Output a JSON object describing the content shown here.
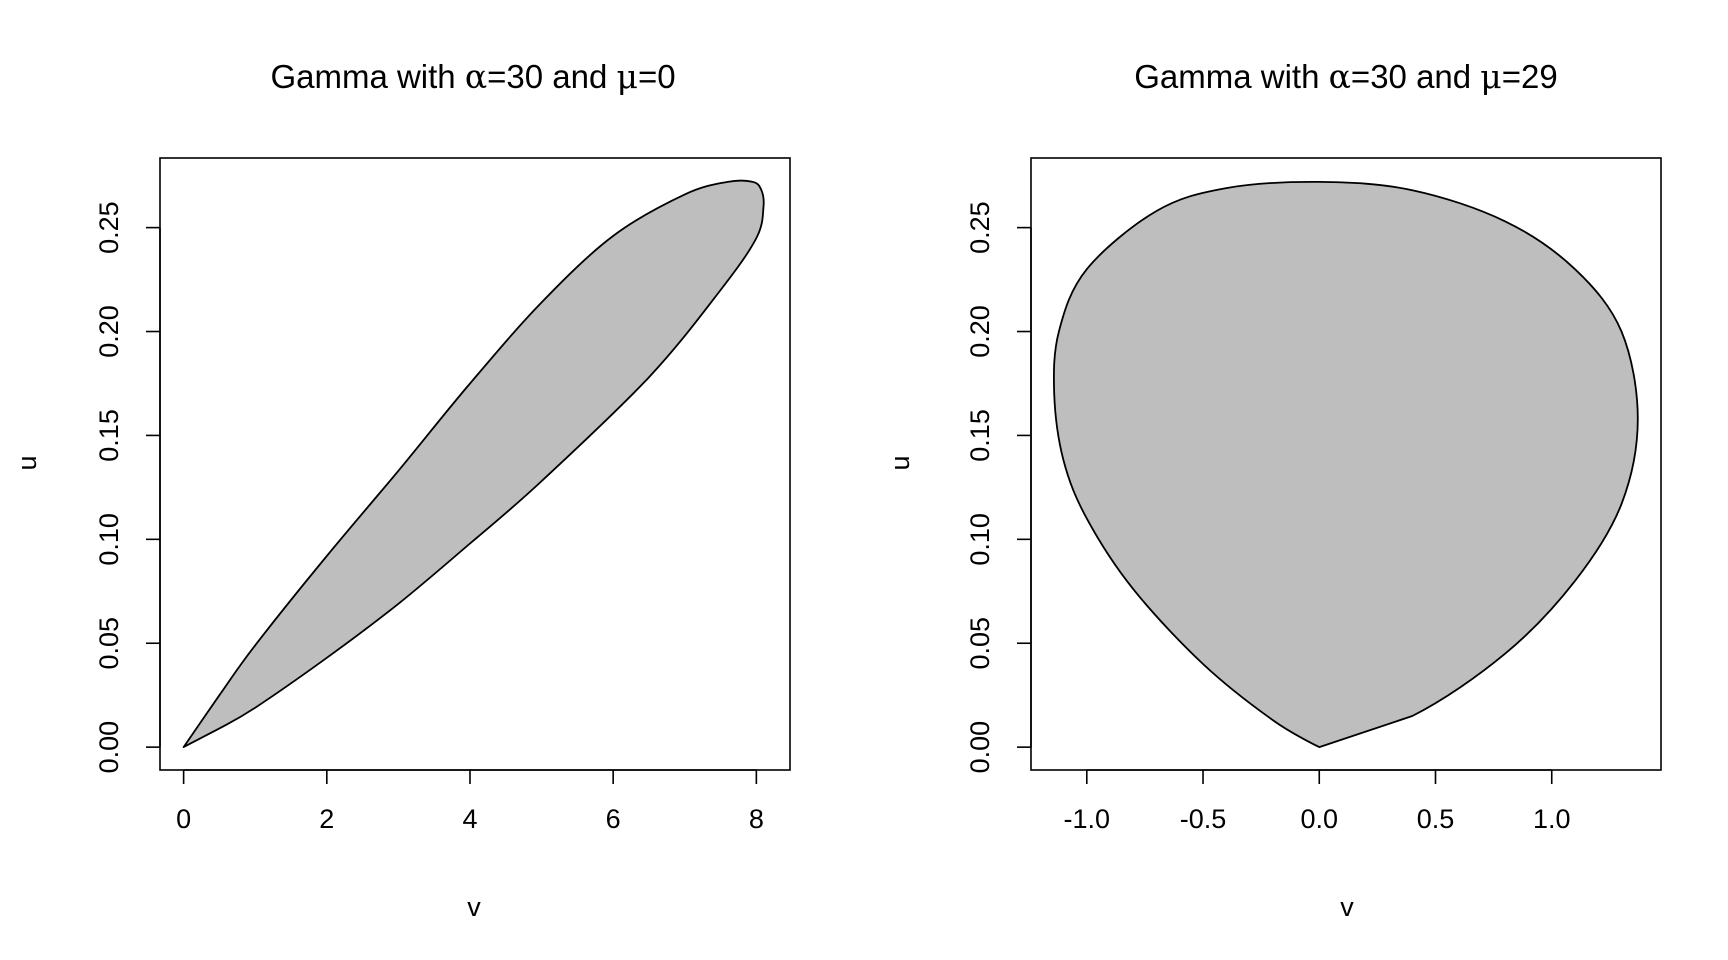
{
  "chart_data": [
    {
      "type": "area",
      "title_prefix": "Gamma with  ",
      "title_alpha_symbol": "α",
      "title_alpha_value": "=30 and ",
      "title_mu_symbol": "μ",
      "title_mu_value": "=0",
      "xlabel": "v",
      "ylabel": "u",
      "xlim": [
        -0.33,
        8.47
      ],
      "ylim": [
        -0.011,
        0.2835
      ],
      "x_ticks": [
        0,
        2,
        4,
        6,
        8
      ],
      "x_tick_labels": [
        "0",
        "2",
        "4",
        "6",
        "8"
      ],
      "y_ticks": [
        0.0,
        0.05,
        0.1,
        0.15,
        0.2,
        0.25
      ],
      "y_tick_labels": [
        "0.00",
        "0.05",
        "0.10",
        "0.15",
        "0.20",
        "0.25"
      ],
      "grid": false,
      "legend": "none",
      "fill_color": "#bebebe",
      "series": [
        {
          "points": [
            [
              0,
              0
            ],
            [
              0.5,
              0.025
            ],
            [
              1.0,
              0.049
            ],
            [
              2.0,
              0.092
            ],
            [
              3.0,
              0.133
            ],
            [
              4.0,
              0.175
            ],
            [
              5.0,
              0.214
            ],
            [
              6.0,
              0.246
            ],
            [
              7.0,
              0.266
            ],
            [
              7.6,
              0.272
            ],
            [
              7.95,
              0.272
            ],
            [
              8.07,
              0.268
            ],
            [
              8.1,
              0.26
            ],
            [
              8.0,
              0.245
            ],
            [
              7.5,
              0.22
            ],
            [
              6.5,
              0.178
            ],
            [
              5.0,
              0.128
            ],
            [
              4.0,
              0.098
            ],
            [
              3.0,
              0.069
            ],
            [
              2.0,
              0.043
            ],
            [
              1.0,
              0.019
            ],
            [
              0.5,
              0.009
            ],
            [
              0,
              0
            ]
          ]
        }
      ]
    },
    {
      "type": "area",
      "title_prefix": "Gamma with  ",
      "title_alpha_symbol": "α",
      "title_alpha_value": "=30 and ",
      "title_mu_symbol": "μ",
      "title_mu_value": "=29",
      "xlabel": "v",
      "ylabel": "u",
      "xlim": [
        -1.24,
        1.47
      ],
      "ylim": [
        -0.011,
        0.2835
      ],
      "x_ticks": [
        -1.0,
        -0.5,
        0.0,
        0.5,
        1.0
      ],
      "x_tick_labels": [
        "-1.0",
        "-0.5",
        "0.0",
        "0.5",
        "1.0"
      ],
      "y_ticks": [
        0.0,
        0.05,
        0.1,
        0.15,
        0.2,
        0.25
      ],
      "y_tick_labels": [
        "0.00",
        "0.05",
        "0.10",
        "0.15",
        "0.20",
        "0.25"
      ],
      "grid": false,
      "legend": "none",
      "fill_color": "#bebebe",
      "series": [
        {
          "points": [
            [
              0,
              0
            ],
            [
              -0.2,
              0.013
            ],
            [
              -0.5,
              0.04
            ],
            [
              -0.8,
              0.076
            ],
            [
              -1.0,
              0.11
            ],
            [
              -1.1,
              0.138
            ],
            [
              -1.14,
              0.17
            ],
            [
              -1.12,
              0.2
            ],
            [
              -1.0,
              0.23
            ],
            [
              -0.7,
              0.258
            ],
            [
              -0.4,
              0.269
            ],
            [
              0.0,
              0.272
            ],
            [
              0.4,
              0.268
            ],
            [
              0.8,
              0.253
            ],
            [
              1.1,
              0.23
            ],
            [
              1.3,
              0.2
            ],
            [
              1.37,
              0.158
            ],
            [
              1.3,
              0.117
            ],
            [
              1.1,
              0.08
            ],
            [
              0.8,
              0.045
            ],
            [
              0.4,
              0.015
            ],
            [
              0,
              0
            ]
          ]
        }
      ]
    }
  ]
}
